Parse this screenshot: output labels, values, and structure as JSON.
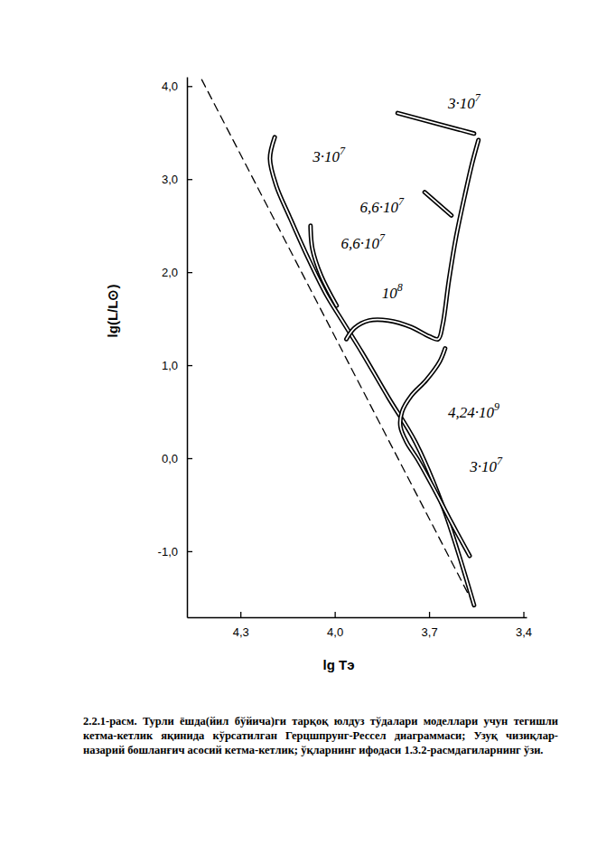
{
  "chart_data": {
    "type": "line",
    "x_label": "lg Tэ",
    "y_label": "lg(L/L⊙)",
    "caption": "2.2.1-расм. Турли ёшда(йил бўйича)ги тарқоқ юлдуз тўдалари моделлари учун тегишли кетма-кетлик яқинида кўрсатилган Герцшпрунг-Рессел диаграммаси; Узуқ чизиқлар-назарий бошланғич асосий кетма-кетлик; ўқларнинг ифодаси 1.3.2-расмдагиларнинг ўзи.",
    "xlim": [
      4.47,
      3.39
    ],
    "ylim": [
      -1.71,
      4.1
    ],
    "xticks": [
      {
        "value": 4.3,
        "label": "4,3"
      },
      {
        "value": 4.0,
        "label": "4,0"
      },
      {
        "value": 3.7,
        "label": "3,7"
      },
      {
        "value": 3.4,
        "label": "3,4"
      }
    ],
    "yticks": [
      {
        "value": 4,
        "label": "4,0"
      },
      {
        "value": 3,
        "label": "3,0"
      },
      {
        "value": 2,
        "label": "2,0"
      },
      {
        "value": 1,
        "label": "1,0"
      },
      {
        "value": 0,
        "label": "0,0"
      },
      {
        "value": -1,
        "label": "-1,0"
      }
    ],
    "grid": false,
    "series": [
      {
        "color": "#000000",
        "line_style": "dashed",
        "x": [
          4.423,
          3.557
        ],
        "values": [
          4.07,
          -1.58
        ]
      },
      {
        "color": "#000000",
        "line_style": "solid",
        "x": [
          4.191,
          4.206,
          4.186,
          4.143,
          4.086,
          4.029,
          3.971,
          3.914,
          3.829,
          3.743,
          3.657,
          3.557,
          null,
          3.8,
          3.557
        ],
        "values": [
          3.45,
          3.22,
          2.93,
          2.59,
          2.16,
          1.77,
          1.45,
          1.14,
          0.65,
          0.17,
          -0.51,
          -1.58,
          null,
          3.71,
          3.49
        ]
      },
      {
        "color": "#000000",
        "line_style": "solid",
        "x": [
          4.077,
          4.071,
          4.043,
          3.994,
          null,
          3.714,
          3.629
        ],
        "values": [
          2.5,
          2.25,
          1.96,
          1.64,
          null,
          2.86,
          2.61
        ]
      },
      {
        "color": "#000000",
        "line_style": "solid",
        "x": [
          3.963,
          3.937,
          3.891,
          3.829,
          3.757,
          3.7,
          3.671,
          3.657,
          3.637,
          3.614,
          3.586,
          3.563,
          3.543
        ],
        "values": [
          1.28,
          1.4,
          1.48,
          1.48,
          1.41,
          1.31,
          1.28,
          1.43,
          1.91,
          2.38,
          2.83,
          3.17,
          3.42
        ]
      },
      {
        "color": "#000000",
        "line_style": "solid",
        "x": [
          3.571,
          3.629,
          3.686,
          3.737,
          3.771,
          3.791,
          3.786,
          3.757,
          3.709,
          3.666,
          3.649
        ],
        "values": [
          -1.05,
          -0.69,
          -0.32,
          -0.01,
          0.17,
          0.34,
          0.5,
          0.67,
          0.84,
          1.04,
          1.18
        ]
      }
    ],
    "annotations": [
      {
        "text": "3·10",
        "sup": "7",
        "x": 4.07,
        "y": 3.19
      },
      {
        "text": "3·10",
        "sup": "7",
        "x": 3.64,
        "y": 3.76
      },
      {
        "text": "6,6·10",
        "sup": "7",
        "x": 3.92,
        "y": 2.64
      },
      {
        "text": "6,6·10",
        "sup": "7",
        "x": 3.98,
        "y": 2.25
      },
      {
        "text": "10",
        "sup": "8",
        "x": 3.85,
        "y": 1.72
      },
      {
        "text": "4,24·10",
        "sup": "9",
        "x": 3.64,
        "y": 0.44
      },
      {
        "text": "3·10",
        "sup": "7",
        "x": 3.57,
        "y": -0.15
      }
    ]
  }
}
